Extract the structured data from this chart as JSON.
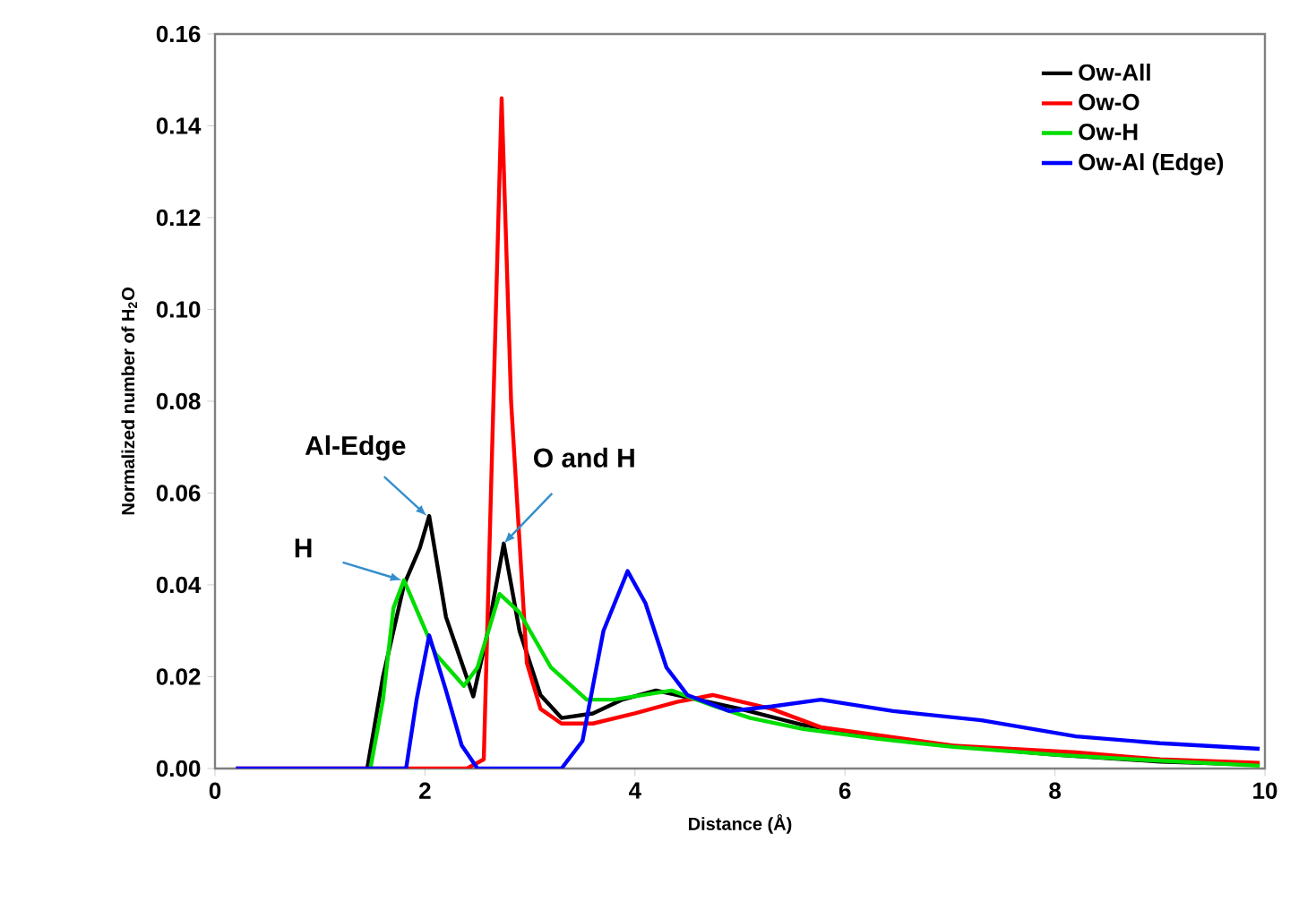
{
  "chart_data": {
    "type": "line",
    "xlabel": "Distance (Å)",
    "ylabel": "Normalized number of H$_{2}$O",
    "xlim": [
      0,
      10
    ],
    "ylim": [
      0,
      0.16
    ],
    "xticks": [
      0,
      2,
      4,
      6,
      8,
      10
    ],
    "yticks": [
      {
        "value": 0,
        "label": "0.00"
      },
      {
        "value": 0.02,
        "label": "0.02"
      },
      {
        "value": 0.04,
        "label": "0.04"
      },
      {
        "value": 0.06,
        "label": "0.06"
      },
      {
        "value": 0.08,
        "label": "0.08"
      },
      {
        "value": 0.1,
        "label": "0.10"
      },
      {
        "value": 0.12,
        "label": "0.12"
      },
      {
        "value": 0.14,
        "label": "0.14"
      },
      {
        "value": 0.16,
        "label": "0.16"
      }
    ],
    "grid": false,
    "legend": "top right",
    "marker": "none",
    "line_style": "solid",
    "series": [
      {
        "name": "Ow-All",
        "color": "#000000",
        "x": [
          1.45,
          1.6,
          1.8,
          1.95,
          2.04,
          2.2,
          2.46,
          2.6,
          2.75,
          2.9,
          3.1,
          3.3,
          3.6,
          3.88,
          4.2,
          4.6,
          5.0,
          5.6,
          6.3,
          7.0,
          8.0,
          9.0,
          9.95
        ],
        "values": [
          0,
          0.02,
          0.04,
          0.048,
          0.055,
          0.033,
          0.0157,
          0.03,
          0.049,
          0.03,
          0.016,
          0.011,
          0.012,
          0.015,
          0.017,
          0.015,
          0.013,
          0.0095,
          0.007,
          0.005,
          0.003,
          0.0015,
          0.0008
        ]
      },
      {
        "name": "Ow-O",
        "color": "#ff0000",
        "x": [
          0.2,
          1.87,
          2.4,
          2.56,
          2.64,
          2.73,
          2.82,
          2.97,
          3.1,
          3.3,
          3.6,
          4.0,
          4.4,
          4.74,
          5.3,
          5.77,
          6.4,
          7.03,
          8.2,
          9.0,
          9.95
        ],
        "values": [
          0,
          0,
          0,
          0.002,
          0.07,
          0.146,
          0.08,
          0.023,
          0.013,
          0.0098,
          0.0098,
          0.012,
          0.0145,
          0.016,
          0.013,
          0.009,
          0.007,
          0.005,
          0.0035,
          0.002,
          0.0012
        ]
      },
      {
        "name": "Ow-H",
        "color": "#00dd00",
        "x": [
          1.48,
          1.6,
          1.7,
          1.8,
          1.95,
          2.1,
          2.37,
          2.5,
          2.71,
          2.9,
          3.2,
          3.54,
          3.8,
          4.35,
          4.74,
          5.1,
          5.6,
          6.3,
          7.03,
          8.0,
          8.75,
          9.95
        ],
        "values": [
          0,
          0.015,
          0.035,
          0.041,
          0.033,
          0.025,
          0.018,
          0.022,
          0.038,
          0.034,
          0.022,
          0.015,
          0.015,
          0.017,
          0.0137,
          0.011,
          0.0086,
          0.0065,
          0.0047,
          0.003,
          0.002,
          0.0006
        ]
      },
      {
        "name": "Ow-Al (Edge)",
        "color": "#0000ff",
        "x": [
          0.2,
          1.82,
          1.92,
          2.04,
          2.2,
          2.35,
          2.5,
          3.3,
          3.5,
          3.7,
          3.93,
          4.1,
          4.3,
          4.5,
          4.9,
          5.3,
          5.77,
          6.46,
          7.3,
          8.2,
          9.0,
          9.95
        ],
        "values": [
          0,
          0,
          0.015,
          0.029,
          0.017,
          0.005,
          0,
          0,
          0.006,
          0.03,
          0.043,
          0.036,
          0.022,
          0.016,
          0.0125,
          0.0135,
          0.015,
          0.0125,
          0.0105,
          0.007,
          0.0055,
          0.0043
        ]
      }
    ],
    "annotations": [
      {
        "text": "Al-Edge",
        "x": 2.02,
        "y": 0.055
      },
      {
        "text": "H",
        "x": 1.78,
        "y": 0.041
      },
      {
        "text": "O and H",
        "x": 2.75,
        "y": 0.049
      }
    ]
  }
}
